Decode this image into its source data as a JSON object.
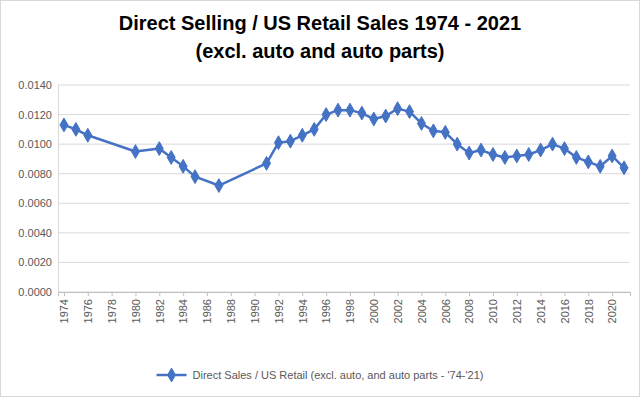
{
  "chart_data": {
    "type": "line",
    "title": "Direct Selling / US Retail Sales 1974 - 2021",
    "subtitle": "(excl. auto and auto parts)",
    "x": [
      1974,
      1975,
      1976,
      1980,
      1982,
      1983,
      1984,
      1985,
      1987,
      1991,
      1992,
      1993,
      1994,
      1995,
      1996,
      1997,
      1998,
      1999,
      2000,
      2001,
      2002,
      2003,
      2004,
      2005,
      2006,
      2007,
      2008,
      2009,
      2010,
      2011,
      2012,
      2013,
      2014,
      2015,
      2016,
      2017,
      2018,
      2019,
      2020,
      2021
    ],
    "series": [
      {
        "name": "Direct Sales / US Retail (excl. auto, and auto parts - '74-'21)",
        "color": "#4472c4",
        "marker": "diamond",
        "values": [
          0.0113,
          0.011,
          0.0106,
          0.0095,
          0.0097,
          0.0091,
          0.0085,
          0.0078,
          0.0072,
          0.0087,
          0.0101,
          0.0102,
          0.0106,
          0.011,
          0.012,
          0.0123,
          0.0123,
          0.0121,
          0.0117,
          0.0119,
          0.0124,
          0.0122,
          0.0114,
          0.0109,
          0.0108,
          0.01,
          0.0094,
          0.0096,
          0.0093,
          0.0091,
          0.0092,
          0.0093,
          0.0096,
          0.01,
          0.0097,
          0.0091,
          0.0088,
          0.0085,
          0.0092,
          0.0084
        ]
      }
    ],
    "xlim": [
      1973.5,
      2021.5
    ],
    "xticks": [
      1974,
      1976,
      1978,
      1980,
      1982,
      1984,
      1986,
      1988,
      1990,
      1992,
      1994,
      1996,
      1998,
      2000,
      2002,
      2004,
      2006,
      2008,
      2010,
      2012,
      2014,
      2016,
      2018,
      2020
    ],
    "ylim": [
      0,
      0.014
    ],
    "yticks": [
      {
        "value": 0,
        "label": "0.0000"
      },
      {
        "value": 0.002,
        "label": "0.0020"
      },
      {
        "value": 0.004,
        "label": "0.0040"
      },
      {
        "value": 0.006,
        "label": "0.0060"
      },
      {
        "value": 0.008,
        "label": "0.0080"
      },
      {
        "value": 0.01,
        "label": "0.0100"
      },
      {
        "value": 0.012,
        "label": "0.0120"
      },
      {
        "value": 0.014,
        "label": "0.0140"
      }
    ],
    "grid": true,
    "legend": "bottom"
  }
}
